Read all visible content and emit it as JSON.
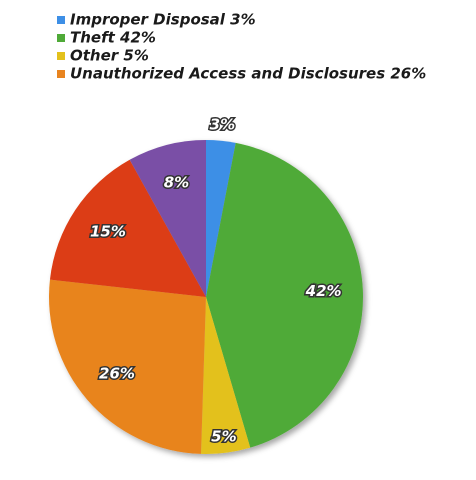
{
  "chart_data": {
    "type": "pie",
    "categories": [
      "Improper Disposal 3%",
      "Theft 42%",
      "Other 5%",
      "Unauthorized Access and Disclosures 26%",
      null,
      null
    ],
    "values": [
      3,
      42,
      5,
      26,
      15,
      8
    ],
    "value_labels": [
      "3%",
      "42%",
      "5%",
      "26%",
      "15%",
      "8%"
    ],
    "colors": [
      "#3d8fe6",
      "#4faa38",
      "#e3c11c",
      "#e8841f",
      "#dc3c12",
      "#7a4fa6"
    ]
  }
}
